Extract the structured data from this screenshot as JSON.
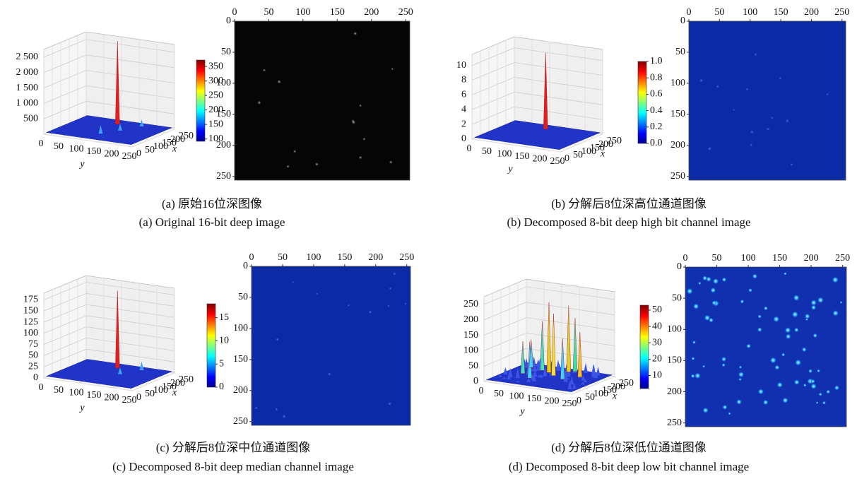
{
  "panels": [
    {
      "caption_zh": "(a) 原始16位深图像",
      "caption_en": "(a) Original 16-bit deep image",
      "surface": {
        "zlim": [
          0,
          2750
        ],
        "zticks": [
          {
            "value": 500,
            "label": "500"
          },
          {
            "value": 1000,
            "label": "1 000"
          },
          {
            "value": 1500,
            "label": "1 500"
          },
          {
            "value": 2000,
            "label": "2 000"
          },
          {
            "value": 2500,
            "label": "2 500"
          }
        ],
        "xlim": [
          0,
          250
        ],
        "xticks": [
          0,
          50,
          100,
          150,
          200,
          250
        ],
        "ylim": [
          0,
          250
        ],
        "yticks": [
          0,
          50,
          100,
          150,
          200,
          250
        ],
        "xlabel": "x",
        "ylabel": "y"
      },
      "colorbar": {
        "clim": [
          92,
          372
        ],
        "ticks": [
          100,
          150,
          200,
          250,
          300,
          350
        ]
      },
      "image": {
        "xlim": [
          0,
          256
        ],
        "ylim": [
          0,
          256
        ],
        "xticks": [
          0,
          50,
          100,
          150,
          200,
          250
        ],
        "yticks": [
          0,
          50,
          100,
          150,
          200,
          250
        ]
      }
    },
    {
      "caption_zh": "(b) 分解后8位深高位通道图像",
      "caption_en": "(b) Decomposed 8-bit deep high bit channel image",
      "surface": {
        "zlim": [
          0,
          11.5
        ],
        "zticks": [
          0,
          2,
          4,
          6,
          8,
          10
        ],
        "xlim": [
          0,
          250
        ],
        "xticks": [
          0,
          50,
          100,
          150,
          200,
          250
        ],
        "ylim": [
          0,
          250
        ],
        "yticks": [
          0,
          50,
          100,
          150,
          200,
          250
        ],
        "xlabel": "x",
        "ylabel": "y"
      },
      "colorbar": {
        "clim": [
          0,
          1
        ],
        "ticks": [
          {
            "value": 0,
            "label": "0.0"
          },
          0.2,
          0.4,
          0.6,
          0.8,
          {
            "value": 1,
            "label": "1.0"
          }
        ]
      },
      "image": {
        "xlim": [
          0,
          256
        ],
        "ylim": [
          0,
          256
        ],
        "xticks": [
          0,
          50,
          100,
          150,
          200,
          250
        ],
        "yticks": [
          0,
          50,
          100,
          150,
          200,
          250
        ]
      }
    },
    {
      "caption_zh": "(c) 分解后8位深中位通道图像",
      "caption_en": "(c) Decomposed 8-bit deep median channel image",
      "surface": {
        "zlim": [
          0,
          190
        ],
        "zticks": [
          0,
          25,
          50,
          75,
          100,
          125,
          150,
          175
        ],
        "xlim": [
          0,
          250
        ],
        "xticks": [
          0,
          50,
          100,
          150,
          200,
          250
        ],
        "ylim": [
          0,
          250
        ],
        "yticks": [
          0,
          50,
          100,
          150,
          200,
          250
        ],
        "xlabel": "x",
        "ylabel": "y"
      },
      "colorbar": {
        "clim": [
          0,
          18
        ],
        "ticks": [
          0,
          5,
          10,
          15
        ]
      },
      "image": {
        "xlim": [
          0,
          256
        ],
        "ylim": [
          0,
          256
        ],
        "xticks": [
          0,
          50,
          100,
          150,
          200,
          250
        ],
        "yticks": [
          0,
          50,
          100,
          150,
          200,
          250
        ]
      }
    },
    {
      "caption_zh": "(d) 分解后8位深低位通道图像",
      "caption_en": "(d) Decomposed 8-bit deep low bit channel image",
      "surface": {
        "zlim": [
          0,
          275
        ],
        "zticks": [
          0,
          50,
          100,
          150,
          200,
          250
        ],
        "xlim": [
          0,
          250
        ],
        "xticks": [
          0,
          50,
          100,
          150,
          200,
          250
        ],
        "ylim": [
          0,
          250
        ],
        "yticks": [
          0,
          50,
          100,
          150,
          200,
          250
        ],
        "xlabel": "x",
        "ylabel": "y"
      },
      "colorbar": {
        "clim": [
          2,
          53
        ],
        "ticks": [
          10,
          20,
          30,
          40,
          50
        ]
      },
      "image": {
        "xlim": [
          0,
          256
        ],
        "ylim": [
          0,
          256
        ],
        "xticks": [
          0,
          50,
          100,
          150,
          200,
          250
        ],
        "yticks": [
          0,
          50,
          100,
          150,
          200,
          250
        ]
      }
    }
  ]
}
